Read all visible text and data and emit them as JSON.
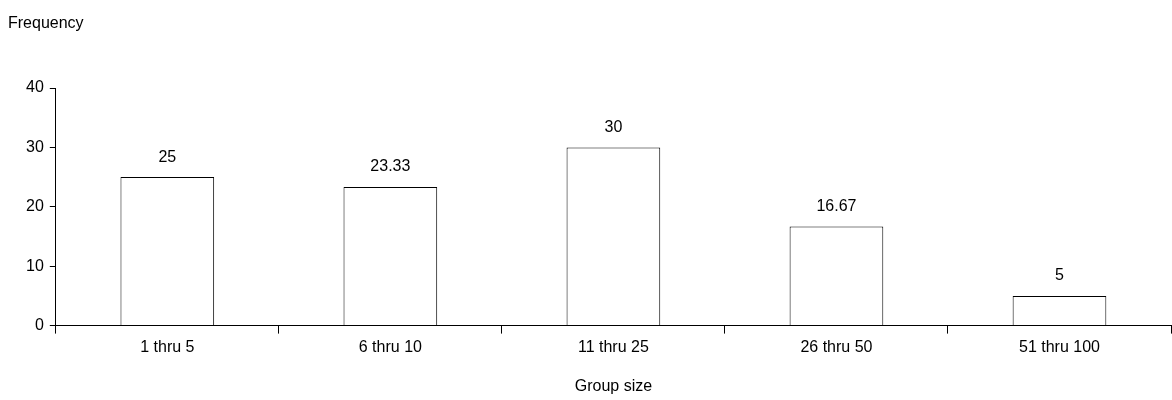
{
  "chart_data": {
    "type": "bar",
    "xlabel": "Group size",
    "ylabel": "Frequency",
    "categories": [
      "1 thru 5",
      "6 thru 10",
      "11 thru 25",
      "26 thru 50",
      "51 thru 100"
    ],
    "values": [
      25,
      23.33,
      30,
      16.67,
      5
    ],
    "color": "#ffffff",
    "ylim": [
      0,
      40
    ],
    "yticks": [
      0,
      10,
      20,
      30,
      40
    ],
    "grid": false,
    "legend": false,
    "data_labels": true
  }
}
